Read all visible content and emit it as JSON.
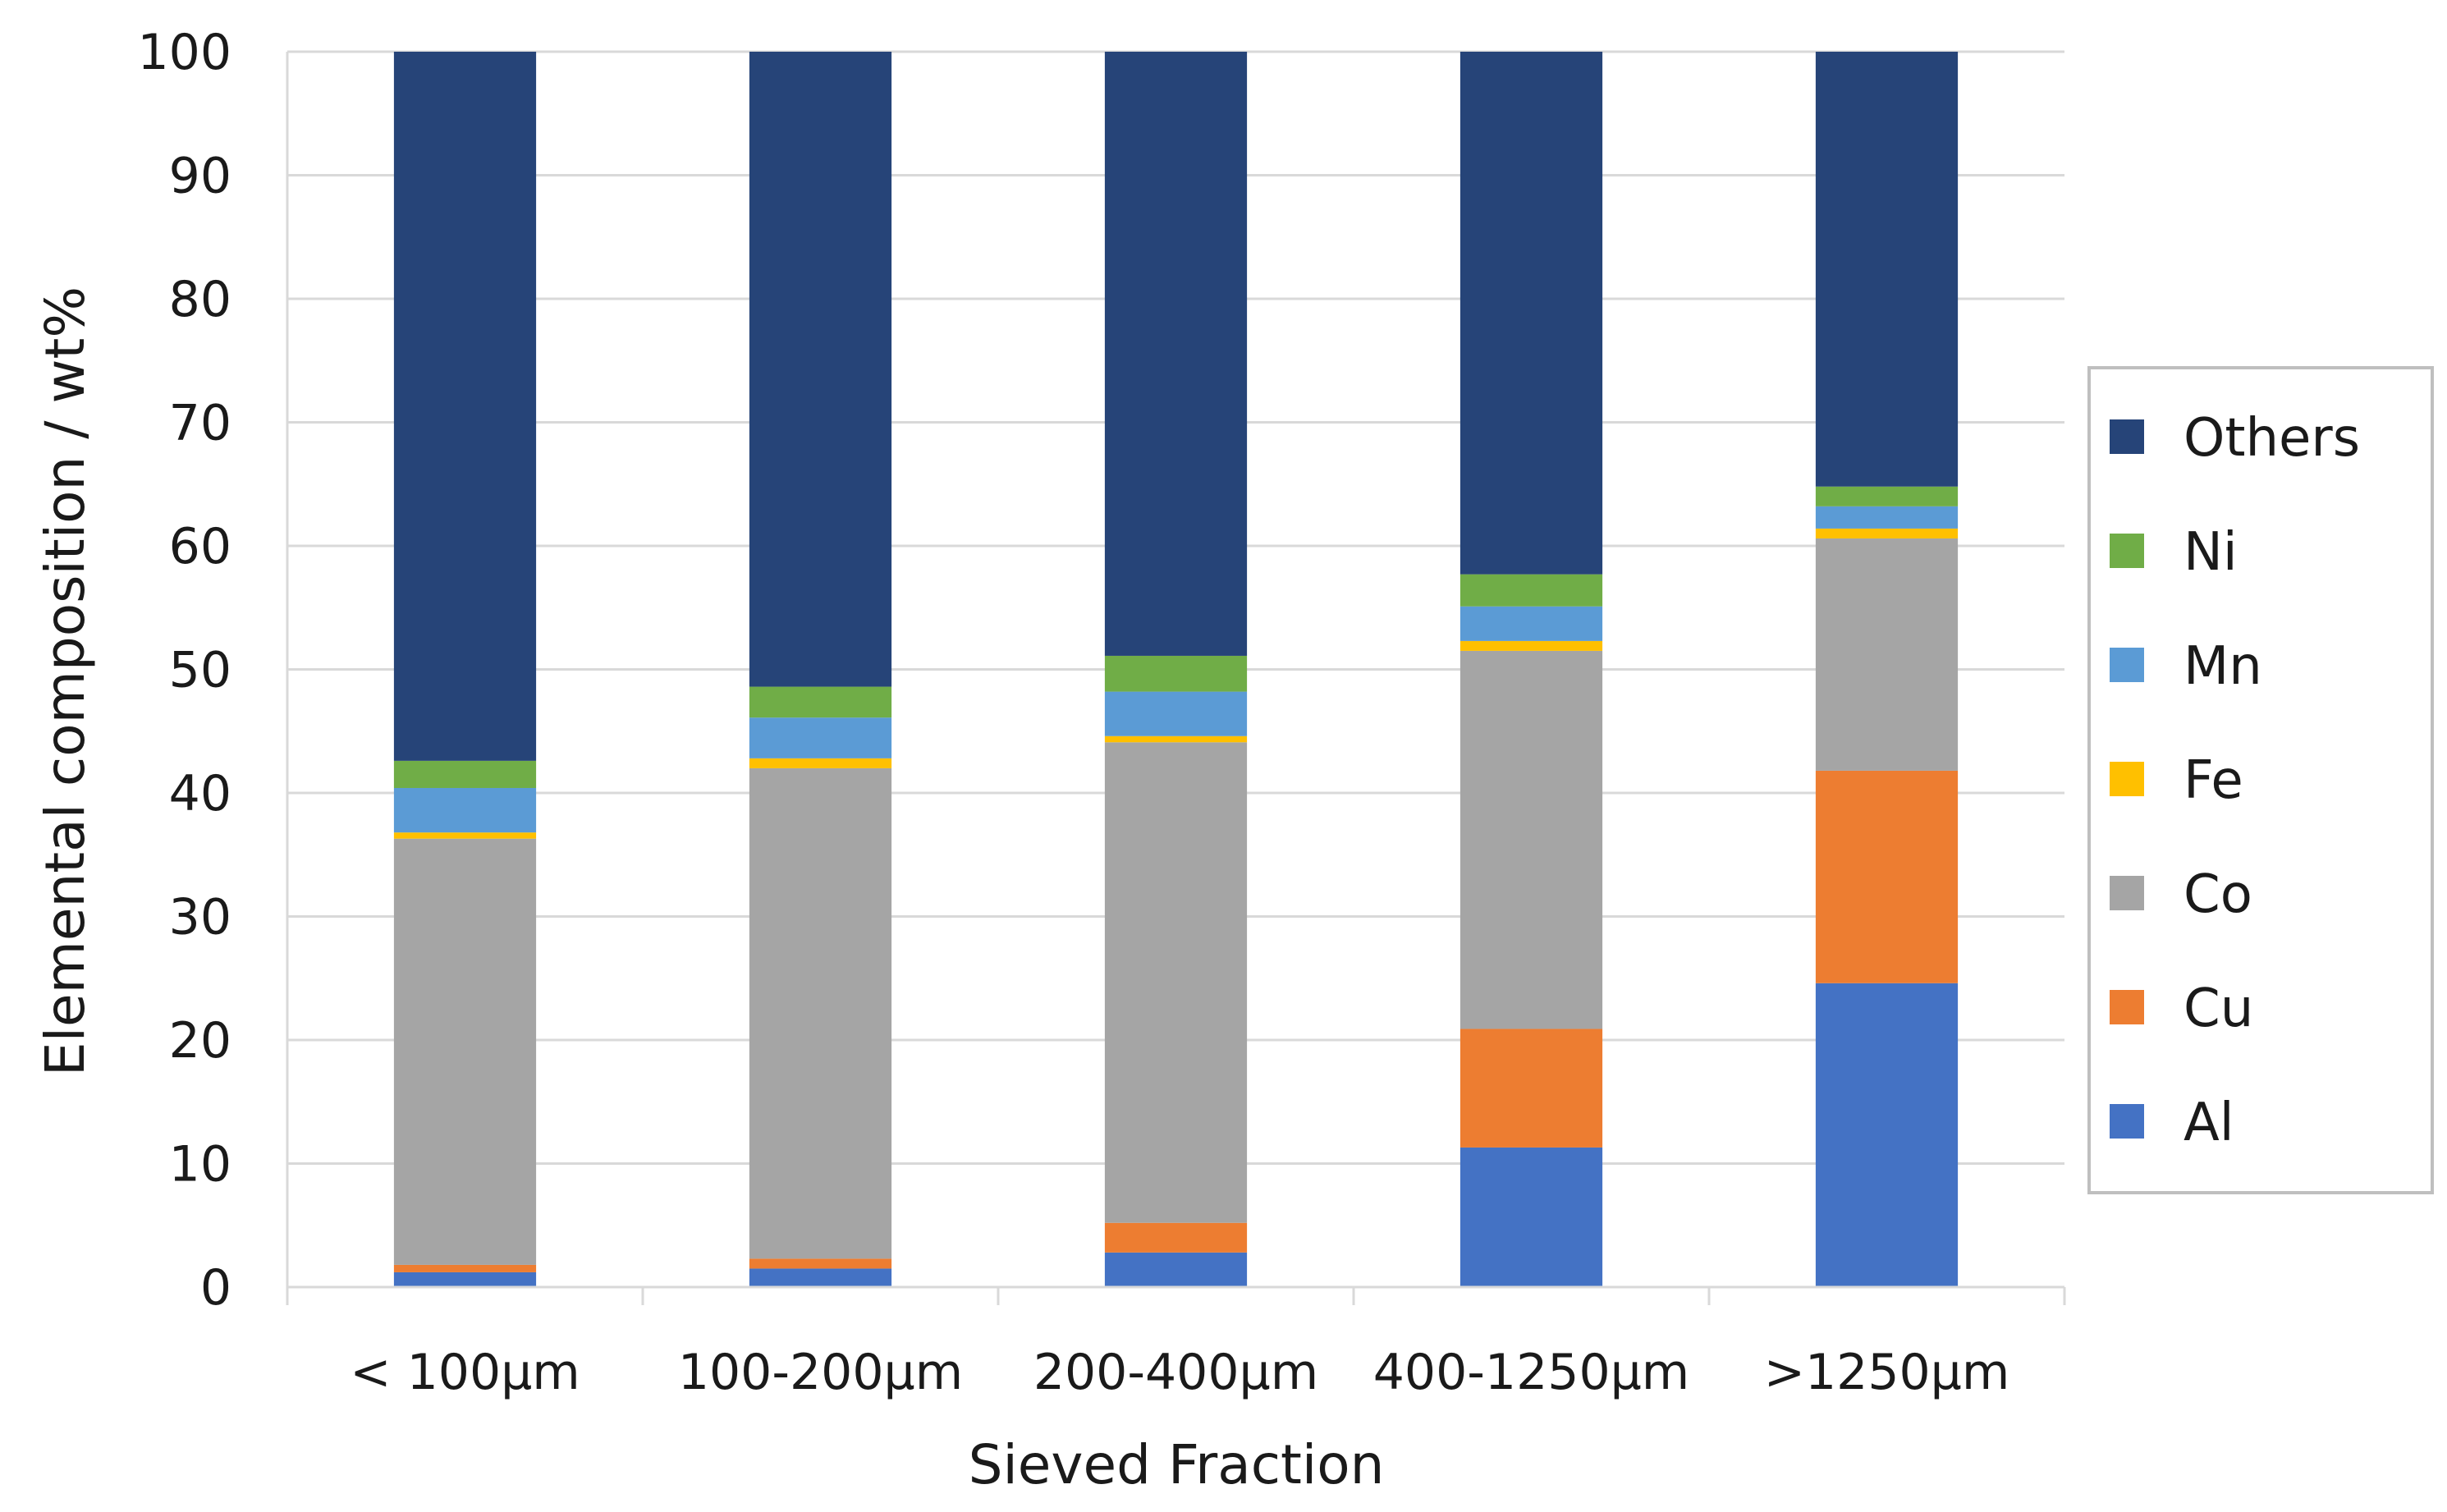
{
  "chart_data": {
    "type": "bar",
    "stacked": true,
    "title": "",
    "xlabel": "Sieved Fraction",
    "ylabel": "Elemental composition / wt%",
    "ylim": [
      0,
      100
    ],
    "yticks": [
      0,
      10,
      20,
      30,
      40,
      50,
      60,
      70,
      80,
      90,
      100
    ],
    "ytick_labels": [
      "0",
      "10",
      "20",
      "30",
      "40",
      "50",
      "60",
      "70",
      "80",
      "90",
      "100"
    ],
    "grid": true,
    "legend_position": "right",
    "categories": [
      "< 100µm",
      "100-200µm",
      "200-400µm",
      "400-1250µm",
      ">1250µm"
    ],
    "series": [
      {
        "name": "Al",
        "color": "#4472C4",
        "values": [
          1.2,
          1.5,
          2.8,
          11.3,
          24.6
        ]
      },
      {
        "name": "Cu",
        "color": "#ED7D31",
        "values": [
          0.6,
          0.8,
          2.4,
          9.6,
          17.2
        ]
      },
      {
        "name": "Co",
        "color": "#A5A5A5",
        "values": [
          34.5,
          39.7,
          38.9,
          30.6,
          18.8
        ]
      },
      {
        "name": "Fe",
        "color": "#FFC000",
        "values": [
          0.5,
          0.8,
          0.5,
          0.8,
          0.8
        ]
      },
      {
        "name": "Mn",
        "color": "#5B9BD5",
        "values": [
          3.6,
          3.3,
          3.6,
          2.8,
          1.8
        ]
      },
      {
        "name": "Ni",
        "color": "#70AD47",
        "values": [
          2.2,
          2.5,
          2.9,
          2.6,
          1.6
        ]
      },
      {
        "name": "Others",
        "color": "#264478",
        "values": [
          57.4,
          51.4,
          48.9,
          42.3,
          35.2
        ]
      }
    ]
  }
}
